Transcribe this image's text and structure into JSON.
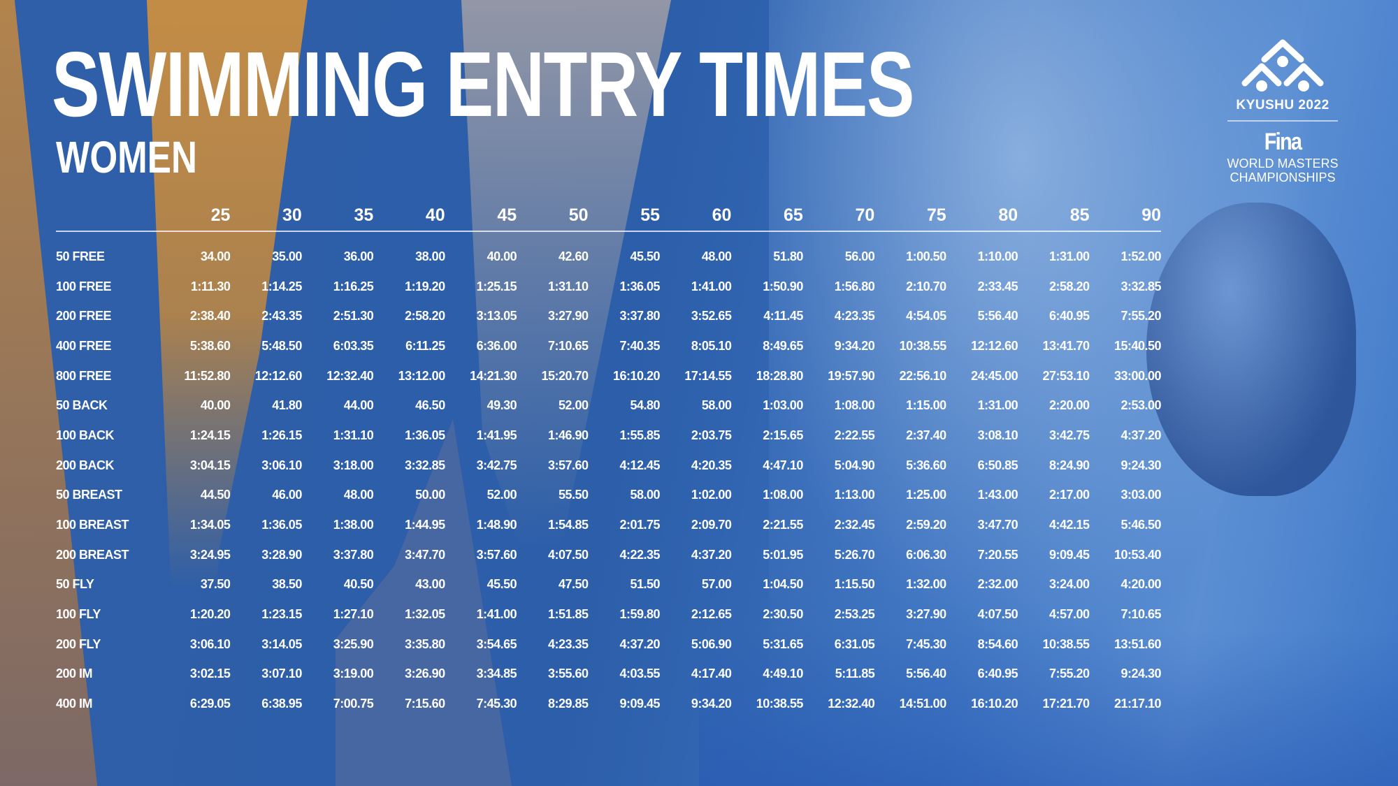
{
  "title": "SWIMMING ENTRY TIMES",
  "subtitle": "WOMEN",
  "logo": {
    "event": "KYUSHU 2022",
    "brand": "Fina",
    "line1": "WORLD MASTERS",
    "line2": "CHAMPIONSHIPS"
  },
  "colors": {
    "background": "#2c5ea9",
    "accent_orange": "#d4913b",
    "text": "#ffffff"
  },
  "table": {
    "age_groups": [
      "25",
      "30",
      "35",
      "40",
      "45",
      "50",
      "55",
      "60",
      "65",
      "70",
      "75",
      "80",
      "85",
      "90"
    ],
    "rows": [
      {
        "event": "50 FREE",
        "times": [
          "34.00",
          "35.00",
          "36.00",
          "38.00",
          "40.00",
          "42.60",
          "45.50",
          "48.00",
          "51.80",
          "56.00",
          "1:00.50",
          "1:10.00",
          "1:31.00",
          "1:52.00"
        ]
      },
      {
        "event": "100 FREE",
        "times": [
          "1:11.30",
          "1:14.25",
          "1:16.25",
          "1:19.20",
          "1:25.15",
          "1:31.10",
          "1:36.05",
          "1:41.00",
          "1:50.90",
          "1:56.80",
          "2:10.70",
          "2:33.45",
          "2:58.20",
          "3:32.85"
        ]
      },
      {
        "event": "200 FREE",
        "times": [
          "2:38.40",
          "2:43.35",
          "2:51.30",
          "2:58.20",
          "3:13.05",
          "3:27.90",
          "3:37.80",
          "3:52.65",
          "4:11.45",
          "4:23.35",
          "4:54.05",
          "5:56.40",
          "6:40.95",
          "7:55.20"
        ]
      },
      {
        "event": "400 FREE",
        "times": [
          "5:38.60",
          "5:48.50",
          "6:03.35",
          "6:11.25",
          "6:36.00",
          "7:10.65",
          "7:40.35",
          "8:05.10",
          "8:49.65",
          "9:34.20",
          "10:38.55",
          "12:12.60",
          "13:41.70",
          "15:40.50"
        ]
      },
      {
        "event": "800 FREE",
        "times": [
          "11:52.80",
          "12:12.60",
          "12:32.40",
          "13:12.00",
          "14:21.30",
          "15:20.70",
          "16:10.20",
          "17:14.55",
          "18:28.80",
          "19:57.90",
          "22:56.10",
          "24:45.00",
          "27:53.10",
          "33:00.00"
        ]
      },
      {
        "event": "50 BACK",
        "times": [
          "40.00",
          "41.80",
          "44.00",
          "46.50",
          "49.30",
          "52.00",
          "54.80",
          "58.00",
          "1:03.00",
          "1:08.00",
          "1:15.00",
          "1:31.00",
          "2:20.00",
          "2:53.00"
        ]
      },
      {
        "event": "100 BACK",
        "times": [
          "1:24.15",
          "1:26.15",
          "1:31.10",
          "1:36.05",
          "1:41.95",
          "1:46.90",
          "1:55.85",
          "2:03.75",
          "2:15.65",
          "2:22.55",
          "2:37.40",
          "3:08.10",
          "3:42.75",
          "4:37.20"
        ]
      },
      {
        "event": "200 BACK",
        "times": [
          "3:04.15",
          "3:06.10",
          "3:18.00",
          "3:32.85",
          "3:42.75",
          "3:57.60",
          "4:12.45",
          "4:20.35",
          "4:47.10",
          "5:04.90",
          "5:36.60",
          "6:50.85",
          "8:24.90",
          "9:24.30"
        ]
      },
      {
        "event": "50 BREAST",
        "times": [
          "44.50",
          "46.00",
          "48.00",
          "50.00",
          "52.00",
          "55.50",
          "58.00",
          "1:02.00",
          "1:08.00",
          "1:13.00",
          "1:25.00",
          "1:43.00",
          "2:17.00",
          "3:03.00"
        ]
      },
      {
        "event": "100 BREAST",
        "times": [
          "1:34.05",
          "1:36.05",
          "1:38.00",
          "1:44.95",
          "1:48.90",
          "1:54.85",
          "2:01.75",
          "2:09.70",
          "2:21.55",
          "2:32.45",
          "2:59.20",
          "3:47.70",
          "4:42.15",
          "5:46.50"
        ]
      },
      {
        "event": "200 BREAST",
        "times": [
          "3:24.95",
          "3:28.90",
          "3:37.80",
          "3:47.70",
          "3:57.60",
          "4:07.50",
          "4:22.35",
          "4:37.20",
          "5:01.95",
          "5:26.70",
          "6:06.30",
          "7:20.55",
          "9:09.45",
          "10:53.40"
        ]
      },
      {
        "event": "50 FLY",
        "times": [
          "37.50",
          "38.50",
          "40.50",
          "43.00",
          "45.50",
          "47.50",
          "51.50",
          "57.00",
          "1:04.50",
          "1:15.50",
          "1:32.00",
          "2:32.00",
          "3:24.00",
          "4:20.00"
        ]
      },
      {
        "event": "100 FLY",
        "times": [
          "1:20.20",
          "1:23.15",
          "1:27.10",
          "1:32.05",
          "1:41.00",
          "1:51.85",
          "1:59.80",
          "2:12.65",
          "2:30.50",
          "2:53.25",
          "3:27.90",
          "4:07.50",
          "4:57.00",
          "7:10.65"
        ]
      },
      {
        "event": "200 FLY",
        "times": [
          "3:06.10",
          "3:14.05",
          "3:25.90",
          "3:35.80",
          "3:54.65",
          "4:23.35",
          "4:37.20",
          "5:06.90",
          "5:31.65",
          "6:31.05",
          "7:45.30",
          "8:54.60",
          "10:38.55",
          "13:51.60"
        ]
      },
      {
        "event": "200 IM",
        "times": [
          "3:02.15",
          "3:07.10",
          "3:19.00",
          "3:26.90",
          "3:34.85",
          "3:55.60",
          "4:03.55",
          "4:17.40",
          "4:49.10",
          "5:11.85",
          "5:56.40",
          "6:40.95",
          "7:55.20",
          "9:24.30"
        ]
      },
      {
        "event": "400 IM",
        "times": [
          "6:29.05",
          "6:38.95",
          "7:00.75",
          "7:15.60",
          "7:45.30",
          "8:29.85",
          "9:09.45",
          "9:34.20",
          "10:38.55",
          "12:32.40",
          "14:51.00",
          "16:10.20",
          "17:21.70",
          "21:17.10"
        ]
      }
    ]
  }
}
